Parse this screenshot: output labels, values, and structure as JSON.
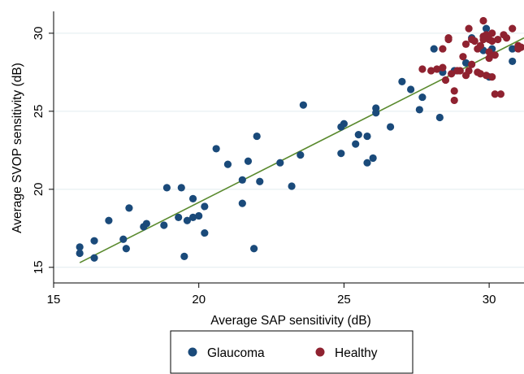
{
  "colors": {
    "glaucoma": "#1a4a7a",
    "healthy": "#8f2230",
    "fit_line": "#5a8a2e",
    "grid": "#e2ecef"
  },
  "chart_data": {
    "type": "scatter",
    "xlabel": "Average SAP sensitivity (dB)",
    "ylabel": "Average SVOP sensitivity (dB)",
    "xlim": [
      15.0,
      31.2
    ],
    "ylim": [
      14.0,
      31.4
    ],
    "xticks": [
      15,
      20,
      25,
      30
    ],
    "yticks": [
      15,
      20,
      25,
      30
    ],
    "grid": "horizontal",
    "legend_position": "bottom",
    "series": [
      {
        "name": "Glaucoma",
        "color": "#1a4a7a",
        "points": [
          [
            15.9,
            16.3
          ],
          [
            15.9,
            15.9
          ],
          [
            16.4,
            16.7
          ],
          [
            16.4,
            15.6
          ],
          [
            16.9,
            18.0
          ],
          [
            17.4,
            16.8
          ],
          [
            17.5,
            16.2
          ],
          [
            17.6,
            18.8
          ],
          [
            18.1,
            17.6
          ],
          [
            18.2,
            17.8
          ],
          [
            18.8,
            17.7
          ],
          [
            18.9,
            20.1
          ],
          [
            19.3,
            18.2
          ],
          [
            19.4,
            20.1
          ],
          [
            19.5,
            15.7
          ],
          [
            19.6,
            18.0
          ],
          [
            19.8,
            19.4
          ],
          [
            19.8,
            18.2
          ],
          [
            20.0,
            18.3
          ],
          [
            20.2,
            18.9
          ],
          [
            20.2,
            17.2
          ],
          [
            20.6,
            22.6
          ],
          [
            21.0,
            21.6
          ],
          [
            21.5,
            19.1
          ],
          [
            21.5,
            20.6
          ],
          [
            21.7,
            21.8
          ],
          [
            21.9,
            16.2
          ],
          [
            22.0,
            23.4
          ],
          [
            22.1,
            20.5
          ],
          [
            22.8,
            21.7
          ],
          [
            23.2,
            20.2
          ],
          [
            23.5,
            22.2
          ],
          [
            23.6,
            25.4
          ],
          [
            24.9,
            22.3
          ],
          [
            24.9,
            24.0
          ],
          [
            25.0,
            24.2
          ],
          [
            25.4,
            22.9
          ],
          [
            25.5,
            23.5
          ],
          [
            25.8,
            23.4
          ],
          [
            25.8,
            21.7
          ],
          [
            26.0,
            22.0
          ],
          [
            26.1,
            25.2
          ],
          [
            26.1,
            24.9
          ],
          [
            26.6,
            24.0
          ],
          [
            27.0,
            26.9
          ],
          [
            27.3,
            26.4
          ],
          [
            27.6,
            25.1
          ],
          [
            27.7,
            25.9
          ],
          [
            28.1,
            29.0
          ],
          [
            28.3,
            24.6
          ],
          [
            28.4,
            27.5
          ],
          [
            28.8,
            27.6
          ],
          [
            29.2,
            28.1
          ],
          [
            29.4,
            29.7
          ],
          [
            29.8,
            28.9
          ],
          [
            29.9,
            30.3
          ],
          [
            30.0,
            27.2
          ],
          [
            30.1,
            29.0
          ],
          [
            30.8,
            29.0
          ],
          [
            30.8,
            28.2
          ]
        ]
      },
      {
        "name": "Healthy",
        "color": "#8f2230",
        "points": [
          [
            27.7,
            27.7
          ],
          [
            28.0,
            27.6
          ],
          [
            28.2,
            27.7
          ],
          [
            28.4,
            27.8
          ],
          [
            28.4,
            29.0
          ],
          [
            28.5,
            27.0
          ],
          [
            28.6,
            29.6
          ],
          [
            28.6,
            29.7
          ],
          [
            28.7,
            27.4
          ],
          [
            28.8,
            26.3
          ],
          [
            28.8,
            25.7
          ],
          [
            28.9,
            27.6
          ],
          [
            29.0,
            27.6
          ],
          [
            29.1,
            28.5
          ],
          [
            29.2,
            27.3
          ],
          [
            29.2,
            29.3
          ],
          [
            29.3,
            30.3
          ],
          [
            29.3,
            27.6
          ],
          [
            29.4,
            29.6
          ],
          [
            29.4,
            28.0
          ],
          [
            29.5,
            29.5
          ],
          [
            29.6,
            27.5
          ],
          [
            29.6,
            29.0
          ],
          [
            29.7,
            29.2
          ],
          [
            29.7,
            27.4
          ],
          [
            29.8,
            29.8
          ],
          [
            29.8,
            30.8
          ],
          [
            29.8,
            29.6
          ],
          [
            29.9,
            29.9
          ],
          [
            29.9,
            27.3
          ],
          [
            30.0,
            29.6
          ],
          [
            30.0,
            28.8
          ],
          [
            30.0,
            28.4
          ],
          [
            30.1,
            27.2
          ],
          [
            30.1,
            29.5
          ],
          [
            30.1,
            30.0
          ],
          [
            30.2,
            28.6
          ],
          [
            30.2,
            26.1
          ],
          [
            30.3,
            29.6
          ],
          [
            30.4,
            26.1
          ],
          [
            30.5,
            29.9
          ],
          [
            30.6,
            29.7
          ],
          [
            30.8,
            30.3
          ],
          [
            31.0,
            29.2
          ],
          [
            31.0,
            29.0
          ],
          [
            31.1,
            29.1
          ]
        ]
      }
    ],
    "fit_line": {
      "from": [
        15.9,
        15.3
      ],
      "to": [
        31.2,
        29.7
      ]
    }
  }
}
